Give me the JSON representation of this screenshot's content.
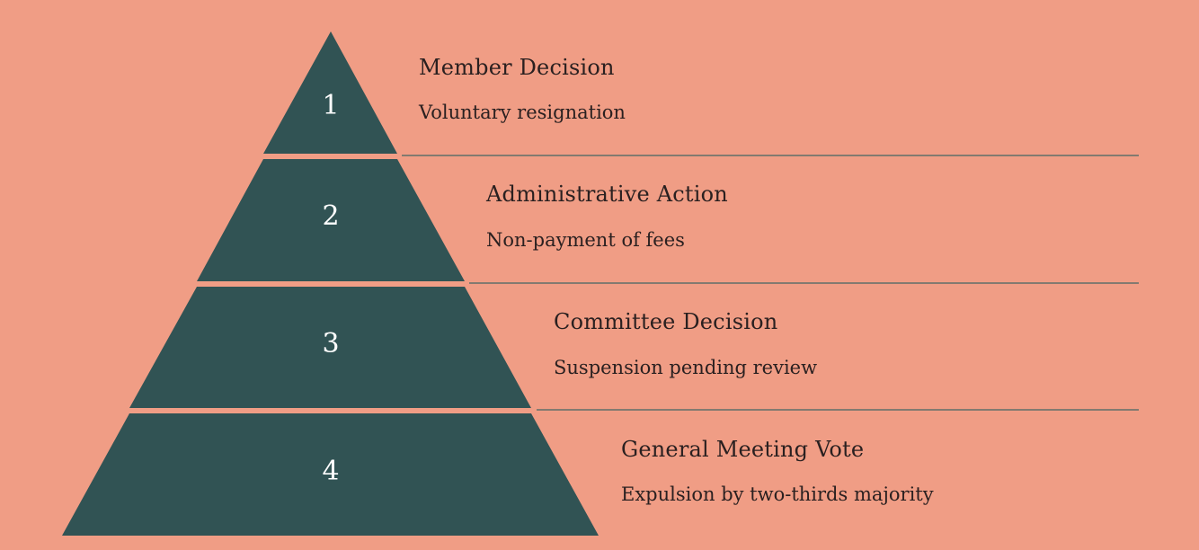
{
  "colors": {
    "background": "#f09d85",
    "tier_fill": "#315354",
    "number_text": "#ffffff",
    "divider": "#5f6f69",
    "label_text": "#2a2020"
  },
  "tiers": [
    {
      "number": "1",
      "title": "Member Decision",
      "description": "Voluntary resignation"
    },
    {
      "number": "2",
      "title": "Administrative Action",
      "description": "Non-payment of fees"
    },
    {
      "number": "3",
      "title": "Committee Decision",
      "description": "Suspension pending review"
    },
    {
      "number": "4",
      "title": "General Meeting Vote",
      "description": "Expulsion by two-thirds majority"
    }
  ]
}
